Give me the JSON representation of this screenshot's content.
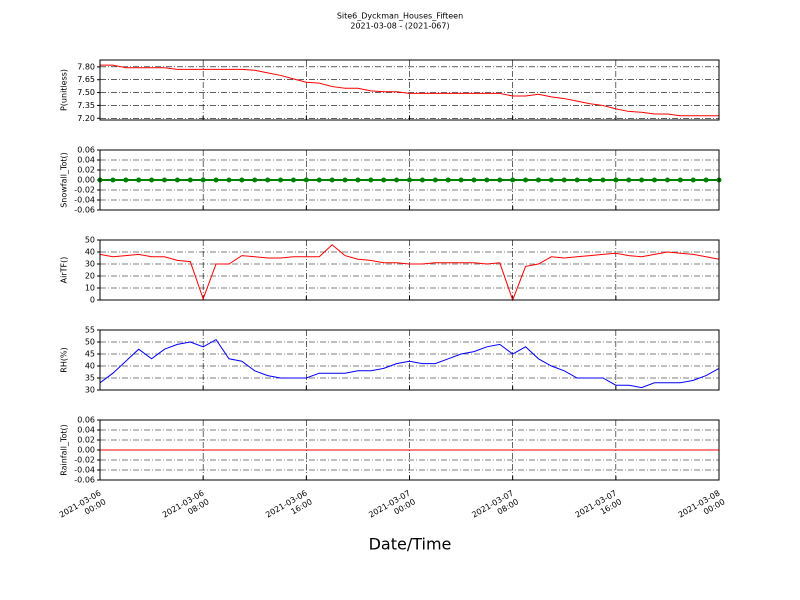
{
  "chart_data": [
    {
      "type": "line",
      "title": "Site6_Dyckman_Houses_Fifteen",
      "subtitle": "2021-03-08 - (2021-067)",
      "ylabel": "P(unitless)",
      "color": "red",
      "x": [
        "2021-03-06 00:00",
        "2021-03-06 01:00",
        "2021-03-06 02:00",
        "2021-03-06 03:00",
        "2021-03-06 04:00",
        "2021-03-06 05:00",
        "2021-03-06 06:00",
        "2021-03-06 07:00",
        "2021-03-06 08:00",
        "2021-03-06 09:00",
        "2021-03-06 10:00",
        "2021-03-06 11:00",
        "2021-03-06 12:00",
        "2021-03-06 13:00",
        "2021-03-06 14:00",
        "2021-03-06 15:00",
        "2021-03-06 16:00",
        "2021-03-06 17:00",
        "2021-03-06 18:00",
        "2021-03-06 19:00",
        "2021-03-06 20:00",
        "2021-03-06 21:00",
        "2021-03-06 22:00",
        "2021-03-06 23:00",
        "2021-03-07 00:00",
        "2021-03-07 01:00",
        "2021-03-07 02:00",
        "2021-03-07 03:00",
        "2021-03-07 04:00",
        "2021-03-07 05:00",
        "2021-03-07 06:00",
        "2021-03-07 07:00",
        "2021-03-07 08:00",
        "2021-03-07 09:00",
        "2021-03-07 10:00",
        "2021-03-07 11:00",
        "2021-03-07 12:00",
        "2021-03-07 13:00",
        "2021-03-07 14:00",
        "2021-03-07 15:00",
        "2021-03-07 16:00",
        "2021-03-07 17:00",
        "2021-03-07 18:00",
        "2021-03-07 19:00",
        "2021-03-07 20:00",
        "2021-03-07 21:00",
        "2021-03-07 22:00",
        "2021-03-07 23:00",
        "2021-03-08 00:00"
      ],
      "values": [
        7.82,
        7.82,
        7.79,
        7.79,
        7.79,
        7.79,
        7.77,
        7.77,
        7.77,
        7.77,
        7.77,
        7.77,
        7.76,
        7.73,
        7.7,
        7.66,
        7.62,
        7.61,
        7.57,
        7.55,
        7.55,
        7.52,
        7.51,
        7.51,
        7.49,
        7.49,
        7.49,
        7.49,
        7.49,
        7.49,
        7.49,
        7.49,
        7.46,
        7.46,
        7.48,
        7.45,
        7.43,
        7.4,
        7.37,
        7.35,
        7.31,
        7.28,
        7.27,
        7.25,
        7.25,
        7.23,
        7.23,
        7.23,
        7.23
      ],
      "xlim": [
        "2021-03-06 00:00",
        "2021-03-08 00:00"
      ],
      "xticks": [
        "2021-03-06 00:00",
        "2021-03-06 08:00",
        "2021-03-06 16:00",
        "2021-03-07 00:00",
        "2021-03-07 08:00",
        "2021-03-07 16:00",
        "2021-03-08 00:00"
      ],
      "ylim": [
        7.18,
        7.88
      ],
      "yticks": [
        {
          "value": 7.2,
          "label": "7.20"
        },
        7.35,
        {
          "value": 7.5,
          "label": "7.50"
        },
        7.65,
        {
          "value": 7.8,
          "label": "7.80"
        }
      ],
      "grid": true
    },
    {
      "type": "line",
      "ylabel": "Snowfall_Tot()",
      "color": "green",
      "marker": true,
      "x": [
        "2021-03-06 00:00",
        "2021-03-06 01:00",
        "2021-03-06 02:00",
        "2021-03-06 03:00",
        "2021-03-06 04:00",
        "2021-03-06 05:00",
        "2021-03-06 06:00",
        "2021-03-06 07:00",
        "2021-03-06 08:00",
        "2021-03-06 09:00",
        "2021-03-06 10:00",
        "2021-03-06 11:00",
        "2021-03-06 12:00",
        "2021-03-06 13:00",
        "2021-03-06 14:00",
        "2021-03-06 15:00",
        "2021-03-06 16:00",
        "2021-03-06 17:00",
        "2021-03-06 18:00",
        "2021-03-06 19:00",
        "2021-03-06 20:00",
        "2021-03-06 21:00",
        "2021-03-06 22:00",
        "2021-03-06 23:00",
        "2021-03-07 00:00",
        "2021-03-07 01:00",
        "2021-03-07 02:00",
        "2021-03-07 03:00",
        "2021-03-07 04:00",
        "2021-03-07 05:00",
        "2021-03-07 06:00",
        "2021-03-07 07:00",
        "2021-03-07 08:00",
        "2021-03-07 09:00",
        "2021-03-07 10:00",
        "2021-03-07 11:00",
        "2021-03-07 12:00",
        "2021-03-07 13:00",
        "2021-03-07 14:00",
        "2021-03-07 15:00",
        "2021-03-07 16:00",
        "2021-03-07 17:00",
        "2021-03-07 18:00",
        "2021-03-07 19:00",
        "2021-03-07 20:00",
        "2021-03-07 21:00",
        "2021-03-07 22:00",
        "2021-03-07 23:00",
        "2021-03-08 00:00"
      ],
      "values": [
        0,
        0,
        0,
        0,
        0,
        0,
        0,
        0,
        0,
        0,
        0,
        0,
        0,
        0,
        0,
        0,
        0,
        0,
        0,
        0,
        0,
        0,
        0,
        0,
        0,
        0,
        0,
        0,
        0,
        0,
        0,
        0,
        0,
        0,
        0,
        0,
        0,
        0,
        0,
        0,
        0,
        0,
        0,
        0,
        0,
        0,
        0,
        0,
        0
      ],
      "xlim": [
        "2021-03-06 00:00",
        "2021-03-08 00:00"
      ],
      "xticks": [
        "2021-03-06 00:00",
        "2021-03-06 08:00",
        "2021-03-06 16:00",
        "2021-03-07 00:00",
        "2021-03-07 08:00",
        "2021-03-07 16:00",
        "2021-03-08 00:00"
      ],
      "ylim": [
        -0.06,
        0.06
      ],
      "yticks": [
        -0.06,
        -0.04,
        -0.02,
        {
          "value": 0,
          "label": "0.00"
        },
        0.02,
        0.04,
        0.06
      ],
      "grid": true
    },
    {
      "type": "line",
      "ylabel": "AirTF()",
      "color": "red",
      "x": [
        "2021-03-06 00:00",
        "2021-03-06 01:00",
        "2021-03-06 02:00",
        "2021-03-06 03:00",
        "2021-03-06 04:00",
        "2021-03-06 05:00",
        "2021-03-06 06:00",
        "2021-03-06 07:00",
        "2021-03-06 08:00",
        "2021-03-06 09:00",
        "2021-03-06 10:00",
        "2021-03-06 11:00",
        "2021-03-06 12:00",
        "2021-03-06 13:00",
        "2021-03-06 14:00",
        "2021-03-06 15:00",
        "2021-03-06 16:00",
        "2021-03-06 17:00",
        "2021-03-06 18:00",
        "2021-03-06 19:00",
        "2021-03-06 20:00",
        "2021-03-06 21:00",
        "2021-03-06 22:00",
        "2021-03-06 23:00",
        "2021-03-07 00:00",
        "2021-03-07 01:00",
        "2021-03-07 02:00",
        "2021-03-07 03:00",
        "2021-03-07 04:00",
        "2021-03-07 05:00",
        "2021-03-07 06:00",
        "2021-03-07 07:00",
        "2021-03-07 08:00",
        "2021-03-07 09:00",
        "2021-03-07 10:00",
        "2021-03-07 11:00",
        "2021-03-07 12:00",
        "2021-03-07 13:00",
        "2021-03-07 14:00",
        "2021-03-07 15:00",
        "2021-03-07 16:00",
        "2021-03-07 17:00",
        "2021-03-07 18:00",
        "2021-03-07 19:00",
        "2021-03-07 20:00",
        "2021-03-07 21:00",
        "2021-03-07 22:00",
        "2021-03-07 23:00",
        "2021-03-08 00:00"
      ],
      "values": [
        38,
        36,
        37,
        38,
        36,
        36,
        33,
        32,
        1,
        30,
        30,
        37,
        36,
        35,
        35,
        36,
        36,
        36,
        46,
        37,
        34,
        33,
        31,
        31,
        30,
        30,
        31,
        31,
        31,
        31,
        30,
        31,
        0,
        28,
        30,
        36,
        35,
        36,
        37,
        38,
        39,
        37,
        36,
        38,
        40,
        39,
        38,
        36,
        34
      ],
      "xlim": [
        "2021-03-06 00:00",
        "2021-03-08 00:00"
      ],
      "xticks": [
        "2021-03-06 00:00",
        "2021-03-06 08:00",
        "2021-03-06 16:00",
        "2021-03-07 00:00",
        "2021-03-07 08:00",
        "2021-03-07 16:00",
        "2021-03-08 00:00"
      ],
      "ylim": [
        0,
        50
      ],
      "yticks": [
        0,
        10,
        20,
        30,
        40,
        50
      ],
      "grid": true
    },
    {
      "type": "line",
      "ylabel": "RH(%)",
      "color": "blue",
      "x": [
        "2021-03-06 00:00",
        "2021-03-06 01:00",
        "2021-03-06 02:00",
        "2021-03-06 03:00",
        "2021-03-06 04:00",
        "2021-03-06 05:00",
        "2021-03-06 06:00",
        "2021-03-06 07:00",
        "2021-03-06 08:00",
        "2021-03-06 09:00",
        "2021-03-06 10:00",
        "2021-03-06 11:00",
        "2021-03-06 12:00",
        "2021-03-06 13:00",
        "2021-03-06 14:00",
        "2021-03-06 15:00",
        "2021-03-06 16:00",
        "2021-03-06 17:00",
        "2021-03-06 18:00",
        "2021-03-06 19:00",
        "2021-03-06 20:00",
        "2021-03-06 21:00",
        "2021-03-06 22:00",
        "2021-03-06 23:00",
        "2021-03-07 00:00",
        "2021-03-07 01:00",
        "2021-03-07 02:00",
        "2021-03-07 03:00",
        "2021-03-07 04:00",
        "2021-03-07 05:00",
        "2021-03-07 06:00",
        "2021-03-07 07:00",
        "2021-03-07 08:00",
        "2021-03-07 09:00",
        "2021-03-07 10:00",
        "2021-03-07 11:00",
        "2021-03-07 12:00",
        "2021-03-07 13:00",
        "2021-03-07 14:00",
        "2021-03-07 15:00",
        "2021-03-07 16:00",
        "2021-03-07 17:00",
        "2021-03-07 18:00",
        "2021-03-07 19:00",
        "2021-03-07 20:00",
        "2021-03-07 21:00",
        "2021-03-07 22:00",
        "2021-03-07 23:00",
        "2021-03-08 00:00"
      ],
      "values": [
        33,
        37,
        42,
        47,
        43,
        47,
        49,
        50,
        48,
        51,
        43,
        42,
        38,
        36,
        35,
        35,
        35,
        37,
        37,
        37,
        38,
        38,
        39,
        41,
        42,
        41,
        41,
        43,
        45,
        46,
        48,
        49,
        45,
        48,
        43,
        40,
        38,
        35,
        35,
        35,
        32,
        32,
        31,
        33,
        33,
        33,
        34,
        36,
        39
      ],
      "xlim": [
        "2021-03-06 00:00",
        "2021-03-08 00:00"
      ],
      "xticks": [
        "2021-03-06 00:00",
        "2021-03-06 08:00",
        "2021-03-06 16:00",
        "2021-03-07 00:00",
        "2021-03-07 08:00",
        "2021-03-07 16:00",
        "2021-03-08 00:00"
      ],
      "ylim": [
        30,
        55
      ],
      "yticks": [
        30,
        35,
        40,
        45,
        50,
        55
      ],
      "grid": true
    },
    {
      "type": "line",
      "ylabel": "Rainfall_Tot()",
      "xlabel": "Date/Time",
      "color": "red",
      "x": [
        "2021-03-06 00:00",
        "2021-03-06 01:00",
        "2021-03-06 02:00",
        "2021-03-06 03:00",
        "2021-03-06 04:00",
        "2021-03-06 05:00",
        "2021-03-06 06:00",
        "2021-03-06 07:00",
        "2021-03-06 08:00",
        "2021-03-06 09:00",
        "2021-03-06 10:00",
        "2021-03-06 11:00",
        "2021-03-06 12:00",
        "2021-03-06 13:00",
        "2021-03-06 14:00",
        "2021-03-06 15:00",
        "2021-03-06 16:00",
        "2021-03-06 17:00",
        "2021-03-06 18:00",
        "2021-03-06 19:00",
        "2021-03-06 20:00",
        "2021-03-06 21:00",
        "2021-03-06 22:00",
        "2021-03-06 23:00",
        "2021-03-07 00:00",
        "2021-03-07 01:00",
        "2021-03-07 02:00",
        "2021-03-07 03:00",
        "2021-03-07 04:00",
        "2021-03-07 05:00",
        "2021-03-07 06:00",
        "2021-03-07 07:00",
        "2021-03-07 08:00",
        "2021-03-07 09:00",
        "2021-03-07 10:00",
        "2021-03-07 11:00",
        "2021-03-07 12:00",
        "2021-03-07 13:00",
        "2021-03-07 14:00",
        "2021-03-07 15:00",
        "2021-03-07 16:00",
        "2021-03-07 17:00",
        "2021-03-07 18:00",
        "2021-03-07 19:00",
        "2021-03-07 20:00",
        "2021-03-07 21:00",
        "2021-03-07 22:00",
        "2021-03-07 23:00",
        "2021-03-08 00:00"
      ],
      "values": [
        0,
        0,
        0,
        0,
        0,
        0,
        0,
        0,
        0,
        0,
        0,
        0,
        0,
        0,
        0,
        0,
        0,
        0,
        0,
        0,
        0,
        0,
        0,
        0,
        0,
        0,
        0,
        0,
        0,
        0,
        0,
        0,
        0,
        0,
        0,
        0,
        0,
        0,
        0,
        0,
        0,
        0,
        0,
        0,
        0,
        0,
        0,
        0,
        0
      ],
      "xlim": [
        "2021-03-06 00:00",
        "2021-03-08 00:00"
      ],
      "xticks": [
        "2021-03-06 00:00",
        "2021-03-06 08:00",
        "2021-03-06 16:00",
        "2021-03-07 00:00",
        "2021-03-07 08:00",
        "2021-03-07 16:00",
        "2021-03-08 00:00"
      ],
      "ylim": [
        -0.06,
        0.06
      ],
      "yticks": [
        -0.06,
        -0.04,
        -0.02,
        {
          "value": 0,
          "label": "0.00"
        },
        0.02,
        0.04,
        0.06
      ],
      "grid": true
    }
  ]
}
